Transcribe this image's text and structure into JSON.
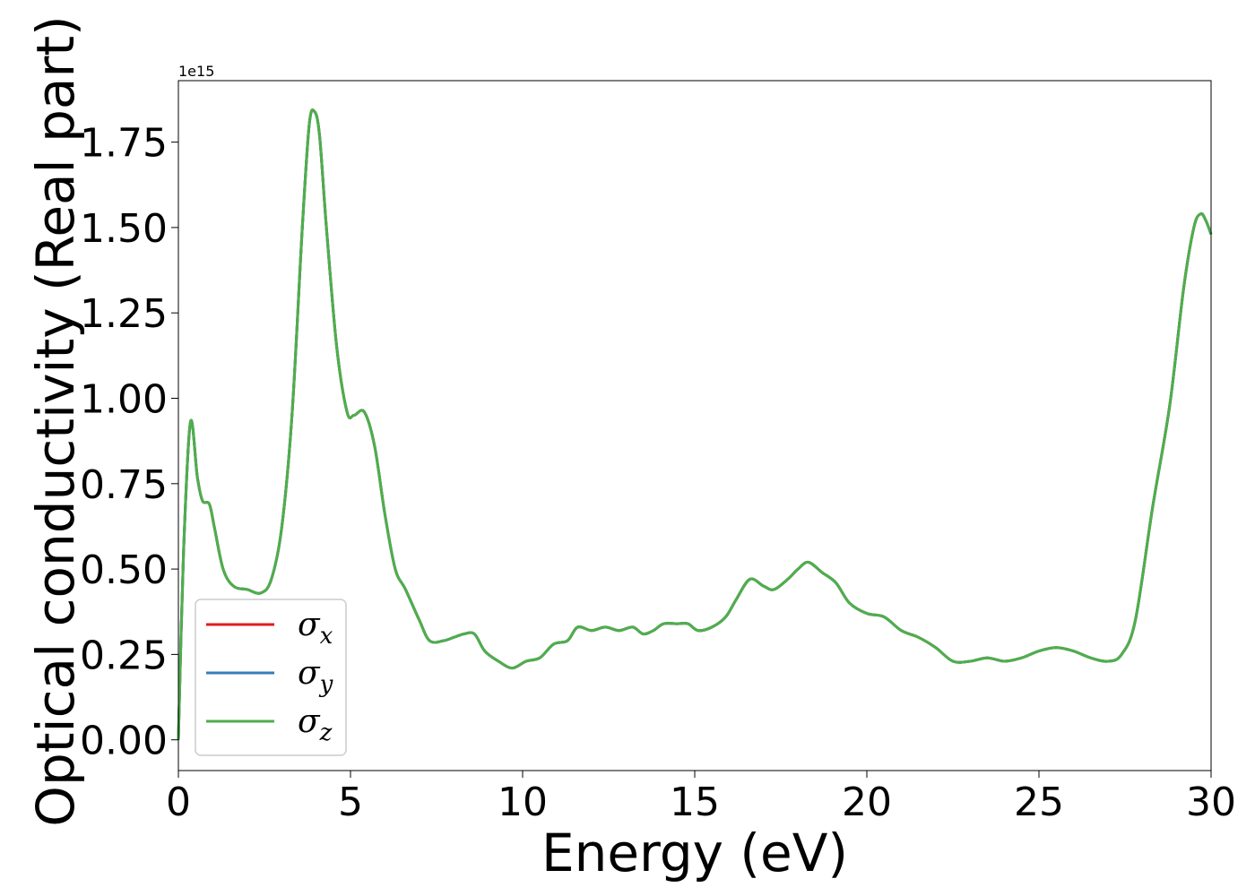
{
  "chart_data": {
    "type": "line",
    "xlabel": "Energy (eV)",
    "ylabel": "Optical conductivity (Real part)",
    "y_offset_text": "1e15",
    "y_scale_factor": 1000000000000000.0,
    "xlim": [
      0,
      30
    ],
    "ylim": [
      -0.09,
      1.93
    ],
    "xticks": [
      0,
      5,
      10,
      15,
      20,
      25,
      30
    ],
    "xtick_labels": [
      "0",
      "5",
      "10",
      "15",
      "20",
      "25",
      "30"
    ],
    "yticks": [
      0,
      0.25,
      0.5,
      0.75,
      1.0,
      1.25,
      1.5,
      1.75
    ],
    "ytick_labels": [
      "0.00",
      "0.25",
      "0.50",
      "0.75",
      "1.00",
      "1.25",
      "1.50",
      "1.75"
    ],
    "grid": false,
    "legend_position": "lower-left",
    "x": [
      0,
      0.15,
      0.35,
      0.55,
      0.7,
      0.9,
      1.05,
      1.3,
      1.6,
      2.0,
      2.4,
      2.7,
      3.0,
      3.3,
      3.6,
      3.8,
      3.95,
      4.1,
      4.3,
      4.6,
      4.9,
      5.1,
      5.4,
      5.7,
      6.0,
      6.3,
      6.6,
      7.0,
      7.3,
      7.7,
      8.0,
      8.3,
      8.6,
      8.9,
      9.3,
      9.7,
      10.1,
      10.5,
      10.9,
      11.3,
      11.6,
      12.0,
      12.4,
      12.8,
      13.2,
      13.5,
      13.8,
      14.1,
      14.5,
      14.8,
      15.1,
      15.5,
      15.9,
      16.2,
      16.6,
      17.0,
      17.3,
      17.7,
      18.0,
      18.3,
      18.7,
      19.1,
      19.5,
      20.0,
      20.5,
      21.0,
      21.5,
      22.0,
      22.5,
      23.0,
      23.5,
      24.0,
      24.5,
      25.0,
      25.5,
      26.0,
      26.5,
      27.0,
      27.4,
      27.8,
      28.3,
      28.8,
      29.2,
      29.5,
      29.7,
      29.85,
      30.0
    ],
    "series": [
      {
        "name": "σ_x",
        "label_main": "σ",
        "label_sub": "x",
        "color": "#e41a1c",
        "values": [
          0.0,
          0.55,
          0.93,
          0.77,
          0.7,
          0.69,
          0.62,
          0.5,
          0.45,
          0.44,
          0.43,
          0.47,
          0.62,
          0.95,
          1.5,
          1.8,
          1.84,
          1.77,
          1.5,
          1.15,
          0.96,
          0.95,
          0.96,
          0.86,
          0.66,
          0.5,
          0.44,
          0.35,
          0.29,
          0.29,
          0.3,
          0.31,
          0.31,
          0.26,
          0.23,
          0.21,
          0.23,
          0.24,
          0.28,
          0.29,
          0.33,
          0.32,
          0.33,
          0.32,
          0.33,
          0.31,
          0.32,
          0.34,
          0.34,
          0.34,
          0.32,
          0.33,
          0.36,
          0.41,
          0.47,
          0.45,
          0.44,
          0.47,
          0.5,
          0.52,
          0.49,
          0.46,
          0.4,
          0.37,
          0.36,
          0.32,
          0.3,
          0.27,
          0.23,
          0.23,
          0.24,
          0.23,
          0.24,
          0.26,
          0.27,
          0.26,
          0.24,
          0.23,
          0.25,
          0.35,
          0.68,
          0.98,
          1.32,
          1.5,
          1.54,
          1.52,
          1.48
        ]
      },
      {
        "name": "σ_y",
        "label_main": "σ",
        "label_sub": "y",
        "color": "#377eb8",
        "values": [
          0.0,
          0.55,
          0.93,
          0.77,
          0.7,
          0.69,
          0.62,
          0.5,
          0.45,
          0.44,
          0.43,
          0.47,
          0.62,
          0.95,
          1.5,
          1.8,
          1.84,
          1.77,
          1.5,
          1.15,
          0.96,
          0.95,
          0.96,
          0.86,
          0.66,
          0.5,
          0.44,
          0.35,
          0.29,
          0.29,
          0.3,
          0.31,
          0.31,
          0.26,
          0.23,
          0.21,
          0.23,
          0.24,
          0.28,
          0.29,
          0.33,
          0.32,
          0.33,
          0.32,
          0.33,
          0.31,
          0.32,
          0.34,
          0.34,
          0.34,
          0.32,
          0.33,
          0.36,
          0.41,
          0.47,
          0.45,
          0.44,
          0.47,
          0.5,
          0.52,
          0.49,
          0.46,
          0.4,
          0.37,
          0.36,
          0.32,
          0.3,
          0.27,
          0.23,
          0.23,
          0.24,
          0.23,
          0.24,
          0.26,
          0.27,
          0.26,
          0.24,
          0.23,
          0.25,
          0.35,
          0.68,
          0.98,
          1.32,
          1.5,
          1.54,
          1.52,
          1.48
        ]
      },
      {
        "name": "σ_z",
        "label_main": "σ",
        "label_sub": "z",
        "color": "#4daf4a",
        "values": [
          0.0,
          0.55,
          0.93,
          0.77,
          0.7,
          0.69,
          0.62,
          0.5,
          0.45,
          0.44,
          0.43,
          0.47,
          0.62,
          0.95,
          1.5,
          1.8,
          1.84,
          1.77,
          1.5,
          1.15,
          0.96,
          0.95,
          0.96,
          0.86,
          0.66,
          0.5,
          0.44,
          0.35,
          0.29,
          0.29,
          0.3,
          0.31,
          0.31,
          0.26,
          0.23,
          0.21,
          0.23,
          0.24,
          0.28,
          0.29,
          0.33,
          0.32,
          0.33,
          0.32,
          0.33,
          0.31,
          0.32,
          0.34,
          0.34,
          0.34,
          0.32,
          0.33,
          0.36,
          0.41,
          0.47,
          0.45,
          0.44,
          0.47,
          0.5,
          0.52,
          0.49,
          0.46,
          0.4,
          0.37,
          0.36,
          0.32,
          0.3,
          0.27,
          0.23,
          0.23,
          0.24,
          0.23,
          0.24,
          0.26,
          0.27,
          0.26,
          0.24,
          0.23,
          0.25,
          0.35,
          0.68,
          0.98,
          1.32,
          1.5,
          1.54,
          1.52,
          1.48
        ]
      }
    ]
  }
}
